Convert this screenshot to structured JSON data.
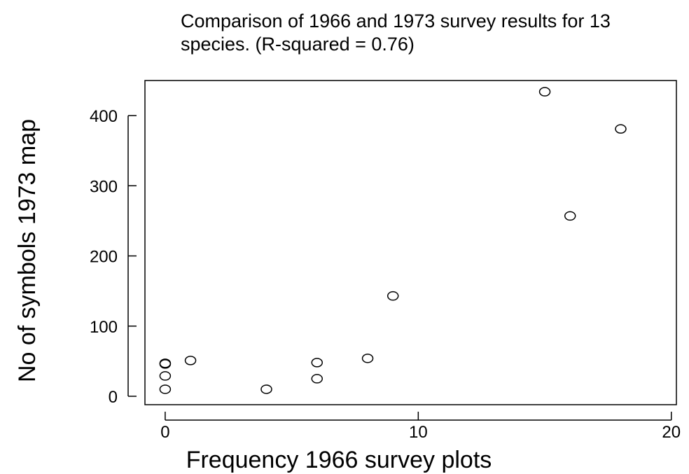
{
  "chart_data": {
    "type": "scatter",
    "title_lines": [
      "Comparison of 1966 and 1973 survey results for 13",
      "species.  (R-squared = 0.76)"
    ],
    "xlabel": "Frequency 1966 survey plots",
    "ylabel": "No of symbols 1973 map",
    "xlim": [
      -0.8,
      20.2
    ],
    "ylim": [
      -12,
      450
    ],
    "xticks": [
      0,
      10,
      20
    ],
    "yticks": [
      0,
      100,
      200,
      300,
      400
    ],
    "grid": false,
    "marker": "open-circle",
    "points": [
      {
        "x": 0,
        "y": 47
      },
      {
        "x": 0,
        "y": 46
      },
      {
        "x": 0,
        "y": 29
      },
      {
        "x": 0,
        "y": 10
      },
      {
        "x": 1,
        "y": 51
      },
      {
        "x": 4,
        "y": 10
      },
      {
        "x": 6,
        "y": 48
      },
      {
        "x": 6,
        "y": 25
      },
      {
        "x": 8,
        "y": 54
      },
      {
        "x": 9,
        "y": 143
      },
      {
        "x": 15,
        "y": 434
      },
      {
        "x": 16,
        "y": 257
      },
      {
        "x": 18,
        "y": 381
      }
    ]
  }
}
